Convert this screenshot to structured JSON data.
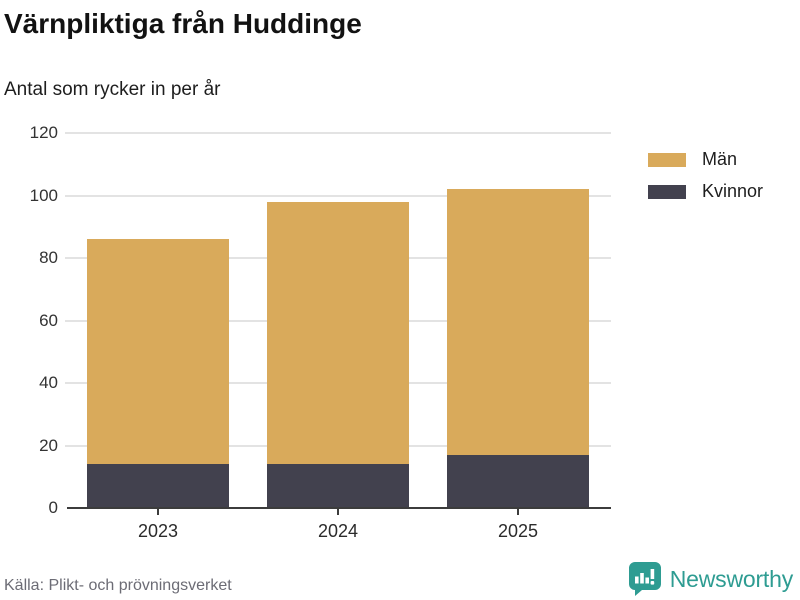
{
  "header": {
    "title": "Värnpliktiga från Huddinge",
    "subtitle": "Antal som rycker in per år"
  },
  "chart_data": {
    "type": "bar",
    "stacked": true,
    "title": "Värnpliktiga från Huddinge",
    "subtitle": "Antal som rycker in per år",
    "categories": [
      "2023",
      "2024",
      "2025"
    ],
    "series": [
      {
        "name": "Kvinnor",
        "color": "#42414E",
        "values": [
          14,
          14,
          17
        ]
      },
      {
        "name": "Män",
        "color": "#D9AA5B",
        "values": [
          72,
          84,
          85
        ]
      }
    ],
    "totals": [
      86,
      98,
      102
    ],
    "xlabel": "",
    "ylabel": "",
    "ylim": [
      0,
      120
    ],
    "yticks": [
      0,
      20,
      40,
      60,
      80,
      100,
      120
    ],
    "grid": true,
    "legend_position": "right"
  },
  "legend": {
    "items": [
      {
        "label": "Män",
        "color": "#D9AA5B"
      },
      {
        "label": "Kvinnor",
        "color": "#42414E"
      }
    ]
  },
  "footer": {
    "source": "Källa: Plikt- och prövningsverket",
    "brand": "Newsworthy",
    "brand_color": "#2E9C92",
    "logo_icon": "bar-chart-speech-bubble"
  }
}
